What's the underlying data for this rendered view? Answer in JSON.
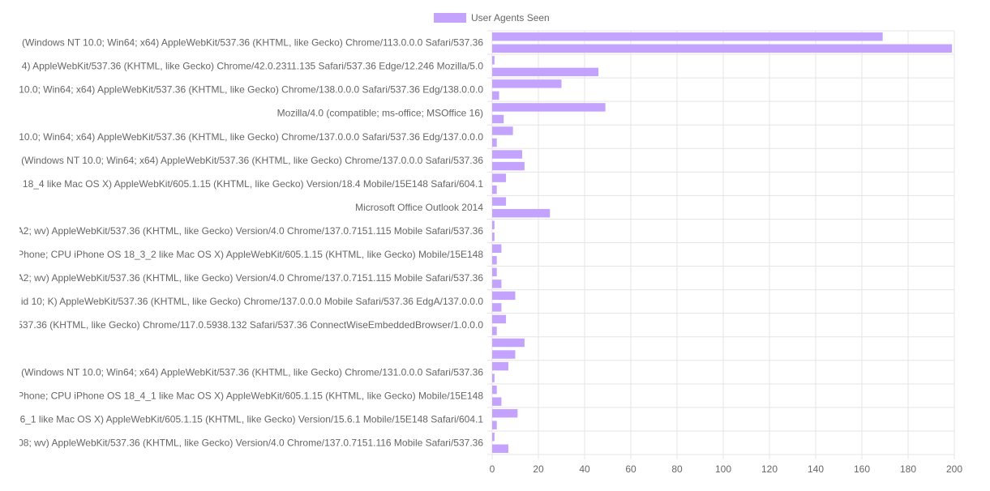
{
  "chart_data": {
    "type": "bar",
    "orientation": "horizontal",
    "legend": {
      "position": "top",
      "label": "User Agents Seen"
    },
    "colors": {
      "bar": "#c4a3ff",
      "grid": "#e5e5e5",
      "tick_text": "#666666"
    },
    "xlim": [
      0,
      200
    ],
    "x_ticks": [
      0,
      20,
      40,
      60,
      80,
      100,
      120,
      140,
      160,
      180,
      200
    ],
    "grid": true,
    "category_labels": [
      "(Windows NT 10.0; Win64; x64) AppleWebKit/537.36 (KHTML, like Gecko) Chrome/113.0.0.0 Safari/537.36",
      "4) AppleWebKit/537.36 (KHTML, like Gecko) Chrome/42.0.2311.135 Safari/537.36 Edge/12.246 Mozilla/5.0",
      "10.0; Win64; x64) AppleWebKit/537.36 (KHTML, like Gecko) Chrome/138.0.0.0 Safari/537.36 Edg/138.0.0.0",
      "Mozilla/4.0 (compatible; ms-office; MSOffice 16)",
      "10.0; Win64; x64) AppleWebKit/537.36 (KHTML, like Gecko) Chrome/137.0.0.0 Safari/537.36 Edg/137.0.0.0",
      "(Windows NT 10.0; Win64; x64) AppleWebKit/537.36 (KHTML, like Gecko) Chrome/137.0.0.0 Safari/537.36",
      "18_4 like Mac OS X) AppleWebKit/605.1.15 (KHTML, like Gecko) Version/18.4 Mobile/15E148 Safari/604.1",
      "Microsoft Office Outlook 2014",
      "A2; wv) AppleWebKit/537.36 (KHTML, like Gecko) Version/4.0 Chrome/137.0.7151.115 Mobile Safari/537.36",
      "Phone; CPU iPhone OS 18_3_2 like Mac OS X) AppleWebKit/605.1.15 (KHTML, like Gecko) Mobile/15E148",
      "A2; wv) AppleWebKit/537.36 (KHTML, like Gecko) Version/4.0 Chrome/137.0.7151.115 Mobile Safari/537.36",
      "id 10; K) AppleWebKit/537.36 (KHTML, like Gecko) Chrome/137.0.0.0 Mobile Safari/537.36 EdgA/137.0.0.0",
      "537.36 (KHTML, like Gecko) Chrome/117.0.5938.132 Safari/537.36 ConnectWiseEmbeddedBrowser/1.0.0.0",
      "",
      "(Windows NT 10.0; Win64; x64) AppleWebKit/537.36 (KHTML, like Gecko) Chrome/131.0.0.0 Safari/537.36",
      "Phone; CPU iPhone OS 18_4_1 like Mac OS X) AppleWebKit/605.1.15 (KHTML, like Gecko) Mobile/15E148",
      "6_1 like Mac OS X) AppleWebKit/605.1.15 (KHTML, like Gecko) Version/15.6.1 Mobile/15E148 Safari/604.1",
      "08; wv) AppleWebKit/537.36 (KHTML, like Gecko) Version/4.0 Chrome/137.0.7151.116 Mobile Safari/537.36"
    ],
    "values": [
      169,
      199,
      1,
      46,
      30,
      3,
      49,
      5,
      9,
      2,
      13,
      14,
      6,
      2,
      6,
      25,
      1,
      1,
      4,
      2,
      2,
      4,
      10,
      4,
      6,
      2,
      14,
      10,
      7,
      1,
      2,
      4,
      11,
      2,
      1,
      7
    ]
  }
}
